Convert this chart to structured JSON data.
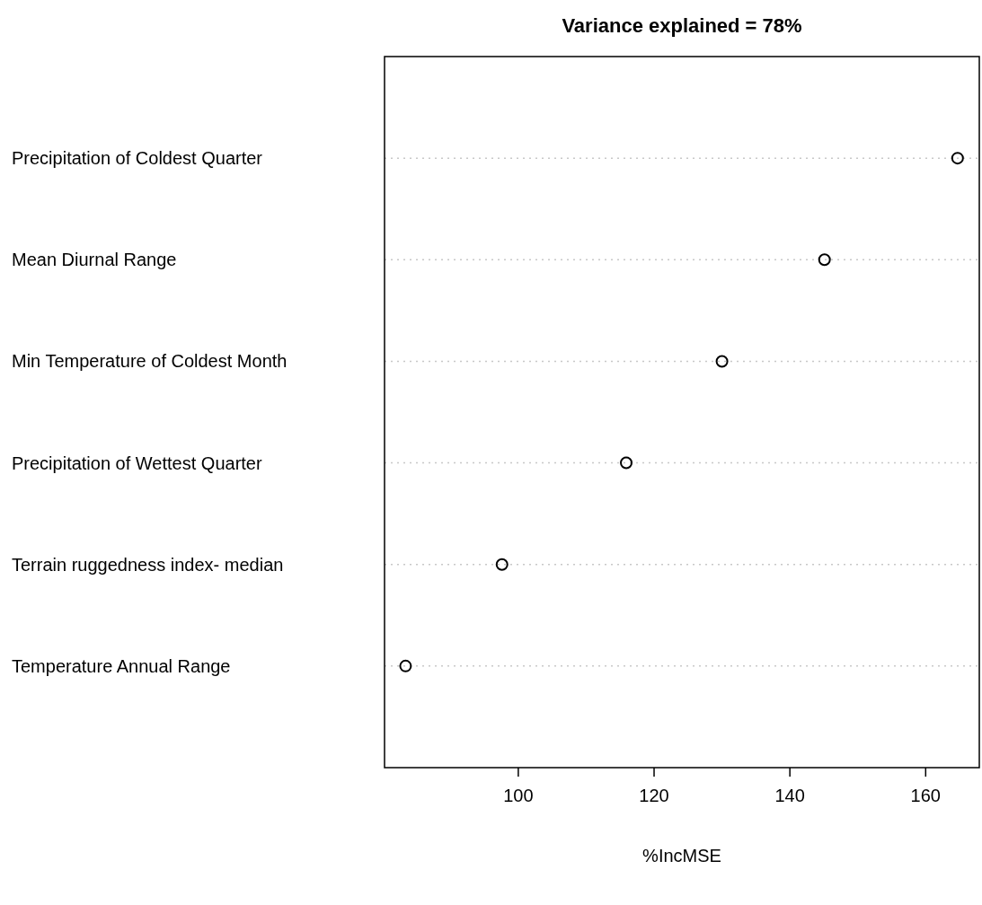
{
  "chart_data": {
    "type": "scatter",
    "orientation": "horizontal",
    "title": "Variance explained = 78%",
    "xlabel": "%IncMSE",
    "categories": [
      "Precipitation of Coldest Quarter",
      "Mean Diurnal Range",
      "Min Temperature of Coldest Month",
      "Precipitation of Wettest Quarter",
      "Terrain ruggedness index- median",
      "Temperature Annual Range"
    ],
    "values": [
      164.7,
      145.1,
      130.0,
      115.9,
      97.6,
      83.4
    ],
    "color": "#000000",
    "marker": "circle",
    "grid": "y",
    "xlim": [
      80.3,
      167.9
    ],
    "xticks": [
      100,
      120,
      140,
      160
    ]
  }
}
